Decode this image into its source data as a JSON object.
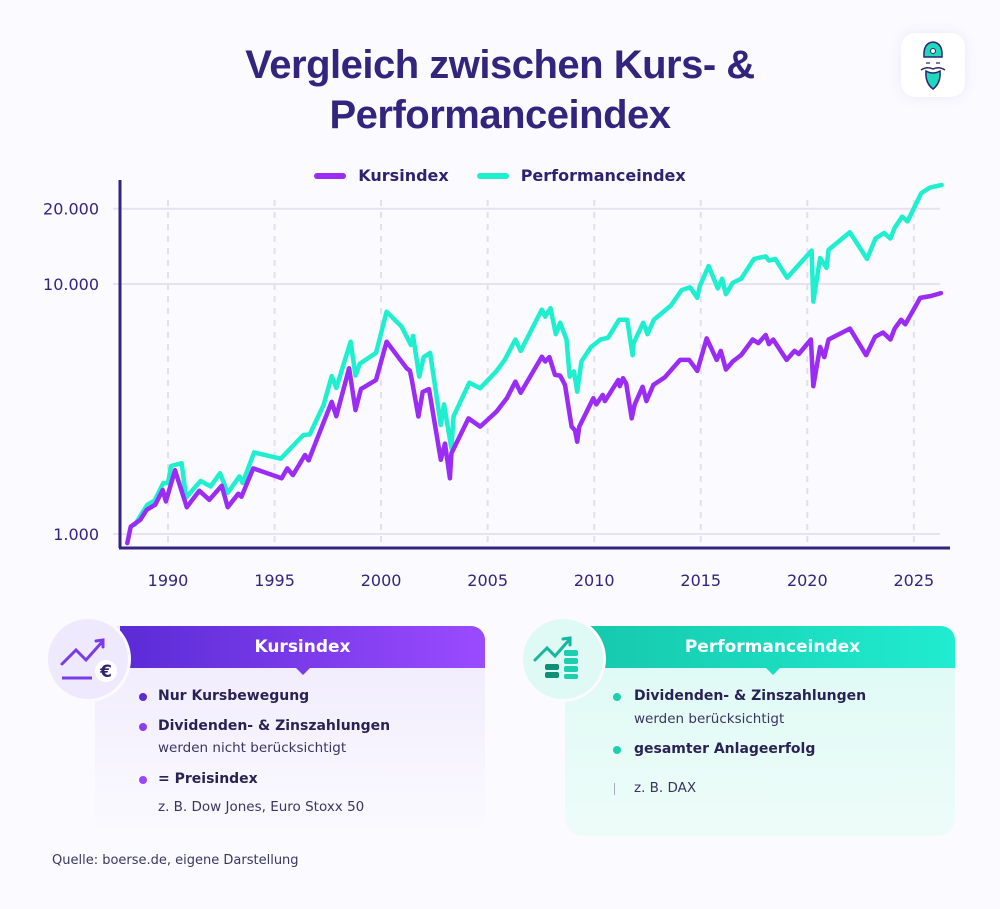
{
  "title_line1": "Vergleich zwischen Kurs- &",
  "title_line2": "Performanceindex",
  "chart_data": {
    "type": "line",
    "title": "Vergleich zwischen Kurs- & Performanceindex",
    "xlabel": "",
    "ylabel": "",
    "yscale": "log",
    "ylim": [
      900,
      26000
    ],
    "xlim": [
      1988,
      2026.5
    ],
    "yticks": [
      1000,
      10000,
      20000
    ],
    "ytick_labels": [
      "1.000",
      "10.000",
      "20.000"
    ],
    "xticks": [
      1990,
      1995,
      2000,
      2005,
      2010,
      2015,
      2020,
      2025
    ],
    "xtick_labels": [
      "1990",
      "1995",
      "2000",
      "2005",
      "2010",
      "2015",
      "2020",
      "2025"
    ],
    "grid": true,
    "legend_position": "top-center",
    "series": [
      {
        "name": "Kursindex",
        "color": "#9a2cf5",
        "x": [
          1988.09,
          1988.25,
          1988.7,
          1989.0,
          1989.4,
          1989.75,
          1989.9,
          1990.33,
          1990.88,
          1991.47,
          1991.94,
          1992.52,
          1992.8,
          1993.3,
          1993.45,
          1994.0,
          1995.33,
          1995.6,
          1995.86,
          1996.43,
          1996.6,
          1997.68,
          1997.9,
          1998.5,
          1998.8,
          1999.05,
          1999.76,
          2000.26,
          2001.2,
          2001.35,
          2001.45,
          2001.75,
          2001.95,
          2002.25,
          2002.8,
          2003.0,
          2003.23,
          2003.3,
          2004.1,
          2004.65,
          2005.42,
          2005.9,
          2006.3,
          2006.55,
          2007.54,
          2007.7,
          2007.9,
          2008.16,
          2008.4,
          2008.63,
          2008.94,
          2009.1,
          2009.2,
          2009.3,
          2009.96,
          2010.1,
          2010.4,
          2010.5,
          2011.13,
          2011.2,
          2011.35,
          2011.5,
          2011.76,
          2011.9,
          2012.27,
          2012.45,
          2012.78,
          2013.32,
          2014.03,
          2014.46,
          2014.84,
          2015.28,
          2015.75,
          2015.94,
          2016.18,
          2016.5,
          2016.9,
          2017.44,
          2017.7,
          2018.05,
          2018.2,
          2018.4,
          2019.03,
          2019.4,
          2019.6,
          2020.17,
          2020.28,
          2020.6,
          2020.8,
          2021.0,
          2022.0,
          2022.76,
          2023.18,
          2023.55,
          2023.9,
          2024.1,
          2024.4,
          2024.6,
          2025.3,
          2025.8,
          2026.27
        ],
        "values": [
          920,
          1070,
          1140,
          1250,
          1310,
          1500,
          1350,
          1800,
          1280,
          1490,
          1370,
          1560,
          1280,
          1450,
          1410,
          1830,
          1670,
          1830,
          1720,
          2070,
          1970,
          3380,
          2960,
          4600,
          3130,
          3800,
          4130,
          5880,
          4600,
          4500,
          4100,
          2950,
          3700,
          3800,
          1980,
          2300,
          1670,
          2100,
          2900,
          2690,
          3090,
          3490,
          4070,
          3670,
          5120,
          4900,
          5100,
          4330,
          4300,
          3950,
          2690,
          2600,
          2340,
          2690,
          3490,
          3300,
          3600,
          3400,
          4130,
          3900,
          4200,
          4000,
          2900,
          3300,
          3880,
          3400,
          3950,
          4240,
          4970,
          4970,
          4490,
          6060,
          4970,
          5400,
          4550,
          4900,
          5200,
          6000,
          5800,
          6250,
          5750,
          6000,
          4970,
          5400,
          5250,
          6000,
          3900,
          5600,
          5100,
          6000,
          6630,
          5190,
          6150,
          6400,
          6000,
          6630,
          7200,
          6900,
          8800,
          8950,
          9200
        ]
      },
      {
        "name": "Performanceindex",
        "color": "#1ef0cf",
        "x": [
          1988.45,
          1989.03,
          1989.37,
          1989.78,
          1990.0,
          1990.14,
          1990.64,
          1990.85,
          1991.53,
          1992.0,
          1992.44,
          1992.8,
          1993.35,
          1993.5,
          1994.04,
          1995.29,
          1996.35,
          1996.65,
          1997.3,
          1997.68,
          1997.9,
          1998.57,
          1998.8,
          1999.0,
          1999.76,
          2000.26,
          2000.96,
          2001.4,
          2001.5,
          2001.79,
          2002.0,
          2002.3,
          2002.8,
          2002.95,
          2003.3,
          2003.4,
          2004.14,
          2004.65,
          2005.4,
          2005.8,
          2006.3,
          2006.55,
          2007.54,
          2007.7,
          2007.95,
          2008.2,
          2008.4,
          2008.7,
          2008.85,
          2009.05,
          2009.2,
          2009.4,
          2009.85,
          2010.3,
          2010.65,
          2011.17,
          2011.55,
          2011.8,
          2011.85,
          2012.3,
          2012.5,
          2012.8,
          2013.6,
          2014.1,
          2014.5,
          2014.84,
          2014.95,
          2015.37,
          2015.8,
          2016.0,
          2016.18,
          2016.5,
          2016.9,
          2017.5,
          2018.05,
          2018.2,
          2018.5,
          2019.05,
          2020.2,
          2020.28,
          2020.6,
          2020.9,
          2021.0,
          2022.0,
          2022.8,
          2023.2,
          2023.6,
          2023.9,
          2024.1,
          2024.45,
          2024.7,
          2025.35,
          2025.75,
          2026.3
        ],
        "values": [
          1090,
          1310,
          1360,
          1600,
          1600,
          1870,
          1920,
          1400,
          1630,
          1550,
          1750,
          1460,
          1700,
          1600,
          2120,
          2000,
          2490,
          2500,
          3280,
          4280,
          3840,
          5880,
          4300,
          4800,
          5300,
          7750,
          6750,
          5700,
          6200,
          4260,
          5100,
          5300,
          2730,
          3300,
          2200,
          2960,
          4030,
          3830,
          4470,
          4970,
          6000,
          5400,
          7900,
          7400,
          8000,
          6300,
          7000,
          6000,
          4260,
          4470,
          3710,
          4900,
          5600,
          6000,
          6100,
          7200,
          7200,
          5190,
          5800,
          7000,
          6300,
          7200,
          8200,
          9450,
          9700,
          8800,
          9800,
          11800,
          9600,
          10500,
          9100,
          10100,
          10500,
          12600,
          12900,
          12400,
          12600,
          10600,
          13600,
          8500,
          12700,
          11600,
          13700,
          16100,
          12600,
          15200,
          16000,
          15200,
          16800,
          18600,
          17800,
          23100,
          24300,
          24900
        ]
      }
    ]
  },
  "cards": {
    "kurs": {
      "title": "Kursindex",
      "color": "#7a3be9",
      "bullet1": "Nur Kursbewegung",
      "bullet2": "Dividenden- & Zinszahlungen",
      "bullet2_sub": "werden nicht berücksichtigt",
      "bullet3": "= Preisindex",
      "example": "z. B. Dow Jones, Euro Stoxx 50",
      "icon": "chart-euro-icon"
    },
    "performance": {
      "title": "Performanceindex",
      "color": "#1bdcc0",
      "bullet1": "Dividenden- & Zinszahlungen",
      "bullet1_sub": "werden berücksichtigt",
      "bullet2": "gesamter Anlageerfolg",
      "example": "z. B. DAX",
      "icon": "chart-coins-icon"
    }
  },
  "source": "Quelle: boerse.de, eigene Darstellung"
}
